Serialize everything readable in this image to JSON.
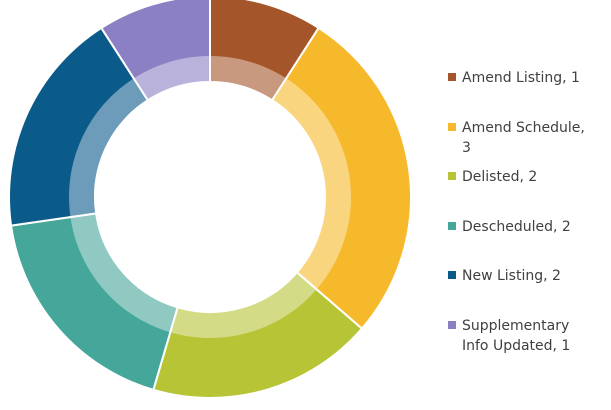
{
  "chart_data": {
    "type": "pie",
    "values": [
      1,
      3,
      2,
      2,
      2,
      1
    ],
    "value_labels": [
      "Amend Listing, 1",
      "Amend Schedule, 3",
      "Delisted, 2",
      "Descheduled, 2",
      "New Listing, 2",
      "Supplementary Info Updated, 1"
    ],
    "colors": [
      "#a4552a",
      "#f6b92c",
      "#b6c436",
      "#45a69a",
      "#0b5b8a",
      "#8b80c3"
    ],
    "donut": true
  }
}
